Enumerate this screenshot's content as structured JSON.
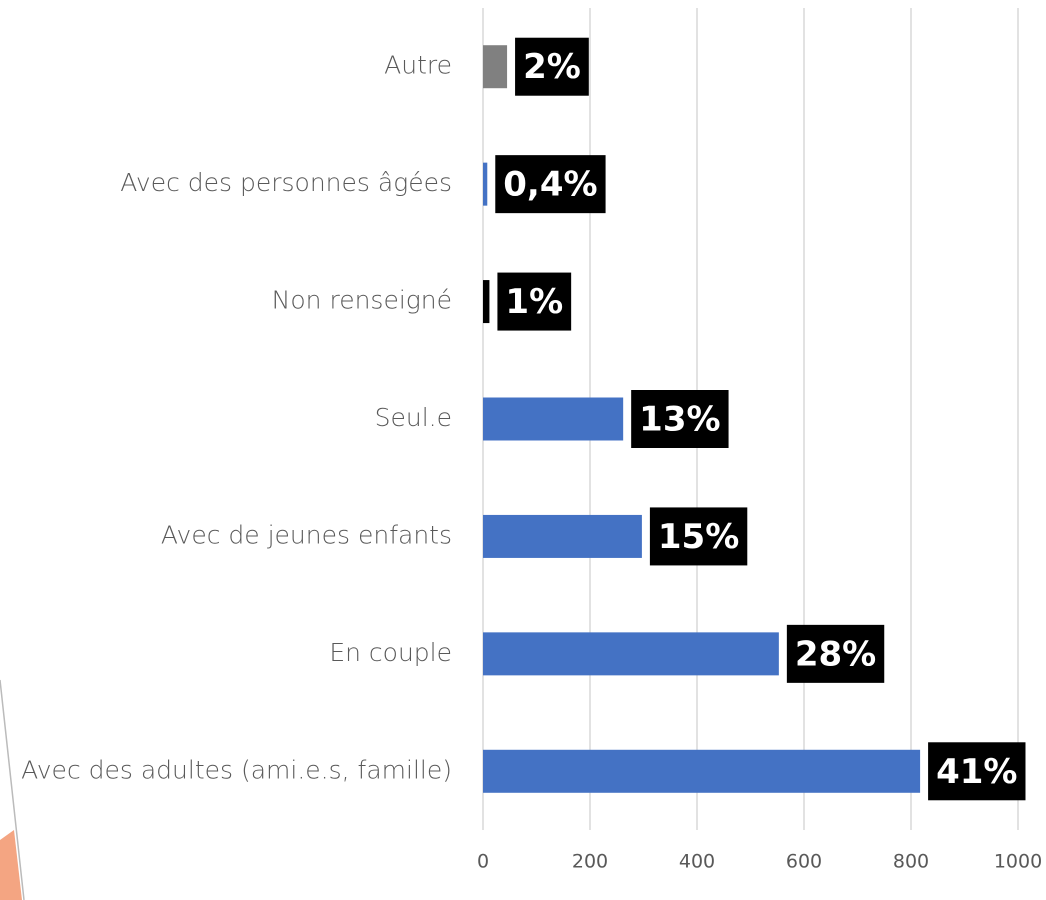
{
  "chart_data": {
    "type": "bar",
    "orientation": "horizontal",
    "categories": [
      "Autre",
      "Avec des personnes âgées",
      "Non renseigné",
      "Seul.e",
      "Avec de jeunes enfants",
      "En couple",
      "Avec des adultes (ami.e.s, famille)"
    ],
    "values": [
      45,
      8,
      12,
      262,
      297,
      553,
      817
    ],
    "value_labels": [
      "2%",
      "0,4%",
      "1%",
      "13%",
      "15%",
      "28%",
      "41%"
    ],
    "colors": [
      "#808080",
      "#4472c4",
      "#000000",
      "#4472c4",
      "#4472c4",
      "#4472c4",
      "#4472c4"
    ],
    "xlim": [
      0,
      1000
    ],
    "xticks": [
      0,
      200,
      400,
      600,
      800,
      1000
    ],
    "grid": true
  }
}
